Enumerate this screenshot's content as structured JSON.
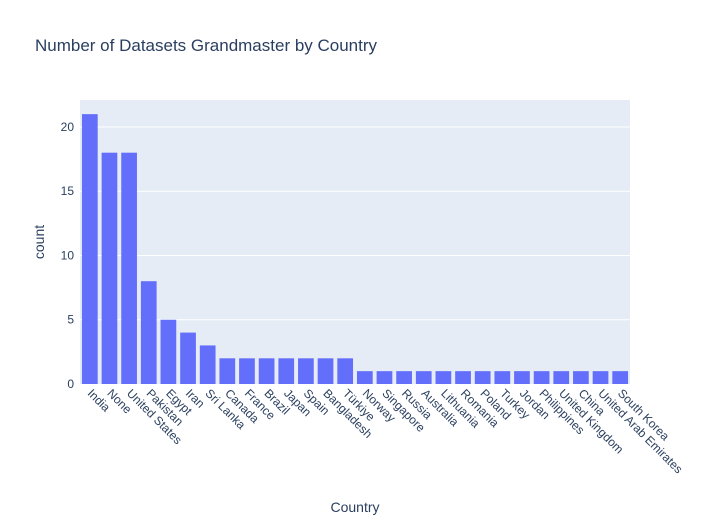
{
  "chart_data": {
    "type": "bar",
    "title": "Number of Datasets Grandmaster by Country",
    "xlabel": "Country",
    "ylabel": "count",
    "categories": [
      "India",
      "None",
      "United States",
      "Pakistan",
      "Egypt",
      "Iran",
      "Sri Lanka",
      "Canada",
      "France",
      "Brazil",
      "Japan",
      "Spain",
      "Bangladesh",
      "Türkiye",
      "Norway",
      "Singapore",
      "Russia",
      "Australia",
      "Lithuania",
      "Romania",
      "Poland",
      "Turkey",
      "Jordan",
      "Philippines",
      "United Kingdom",
      "China",
      "United Arab Emirates",
      "South Korea"
    ],
    "values": [
      21,
      18,
      18,
      8,
      5,
      4,
      3,
      2,
      2,
      2,
      2,
      2,
      2,
      2,
      1,
      1,
      1,
      1,
      1,
      1,
      1,
      1,
      1,
      1,
      1,
      1,
      1,
      1
    ],
    "ylim": [
      0,
      22.1
    ],
    "yticks": [
      0,
      5,
      10,
      15,
      20
    ],
    "bar_color": "#636efa",
    "plot_bg": "#e5ecf6",
    "grid": true,
    "legend": false
  }
}
